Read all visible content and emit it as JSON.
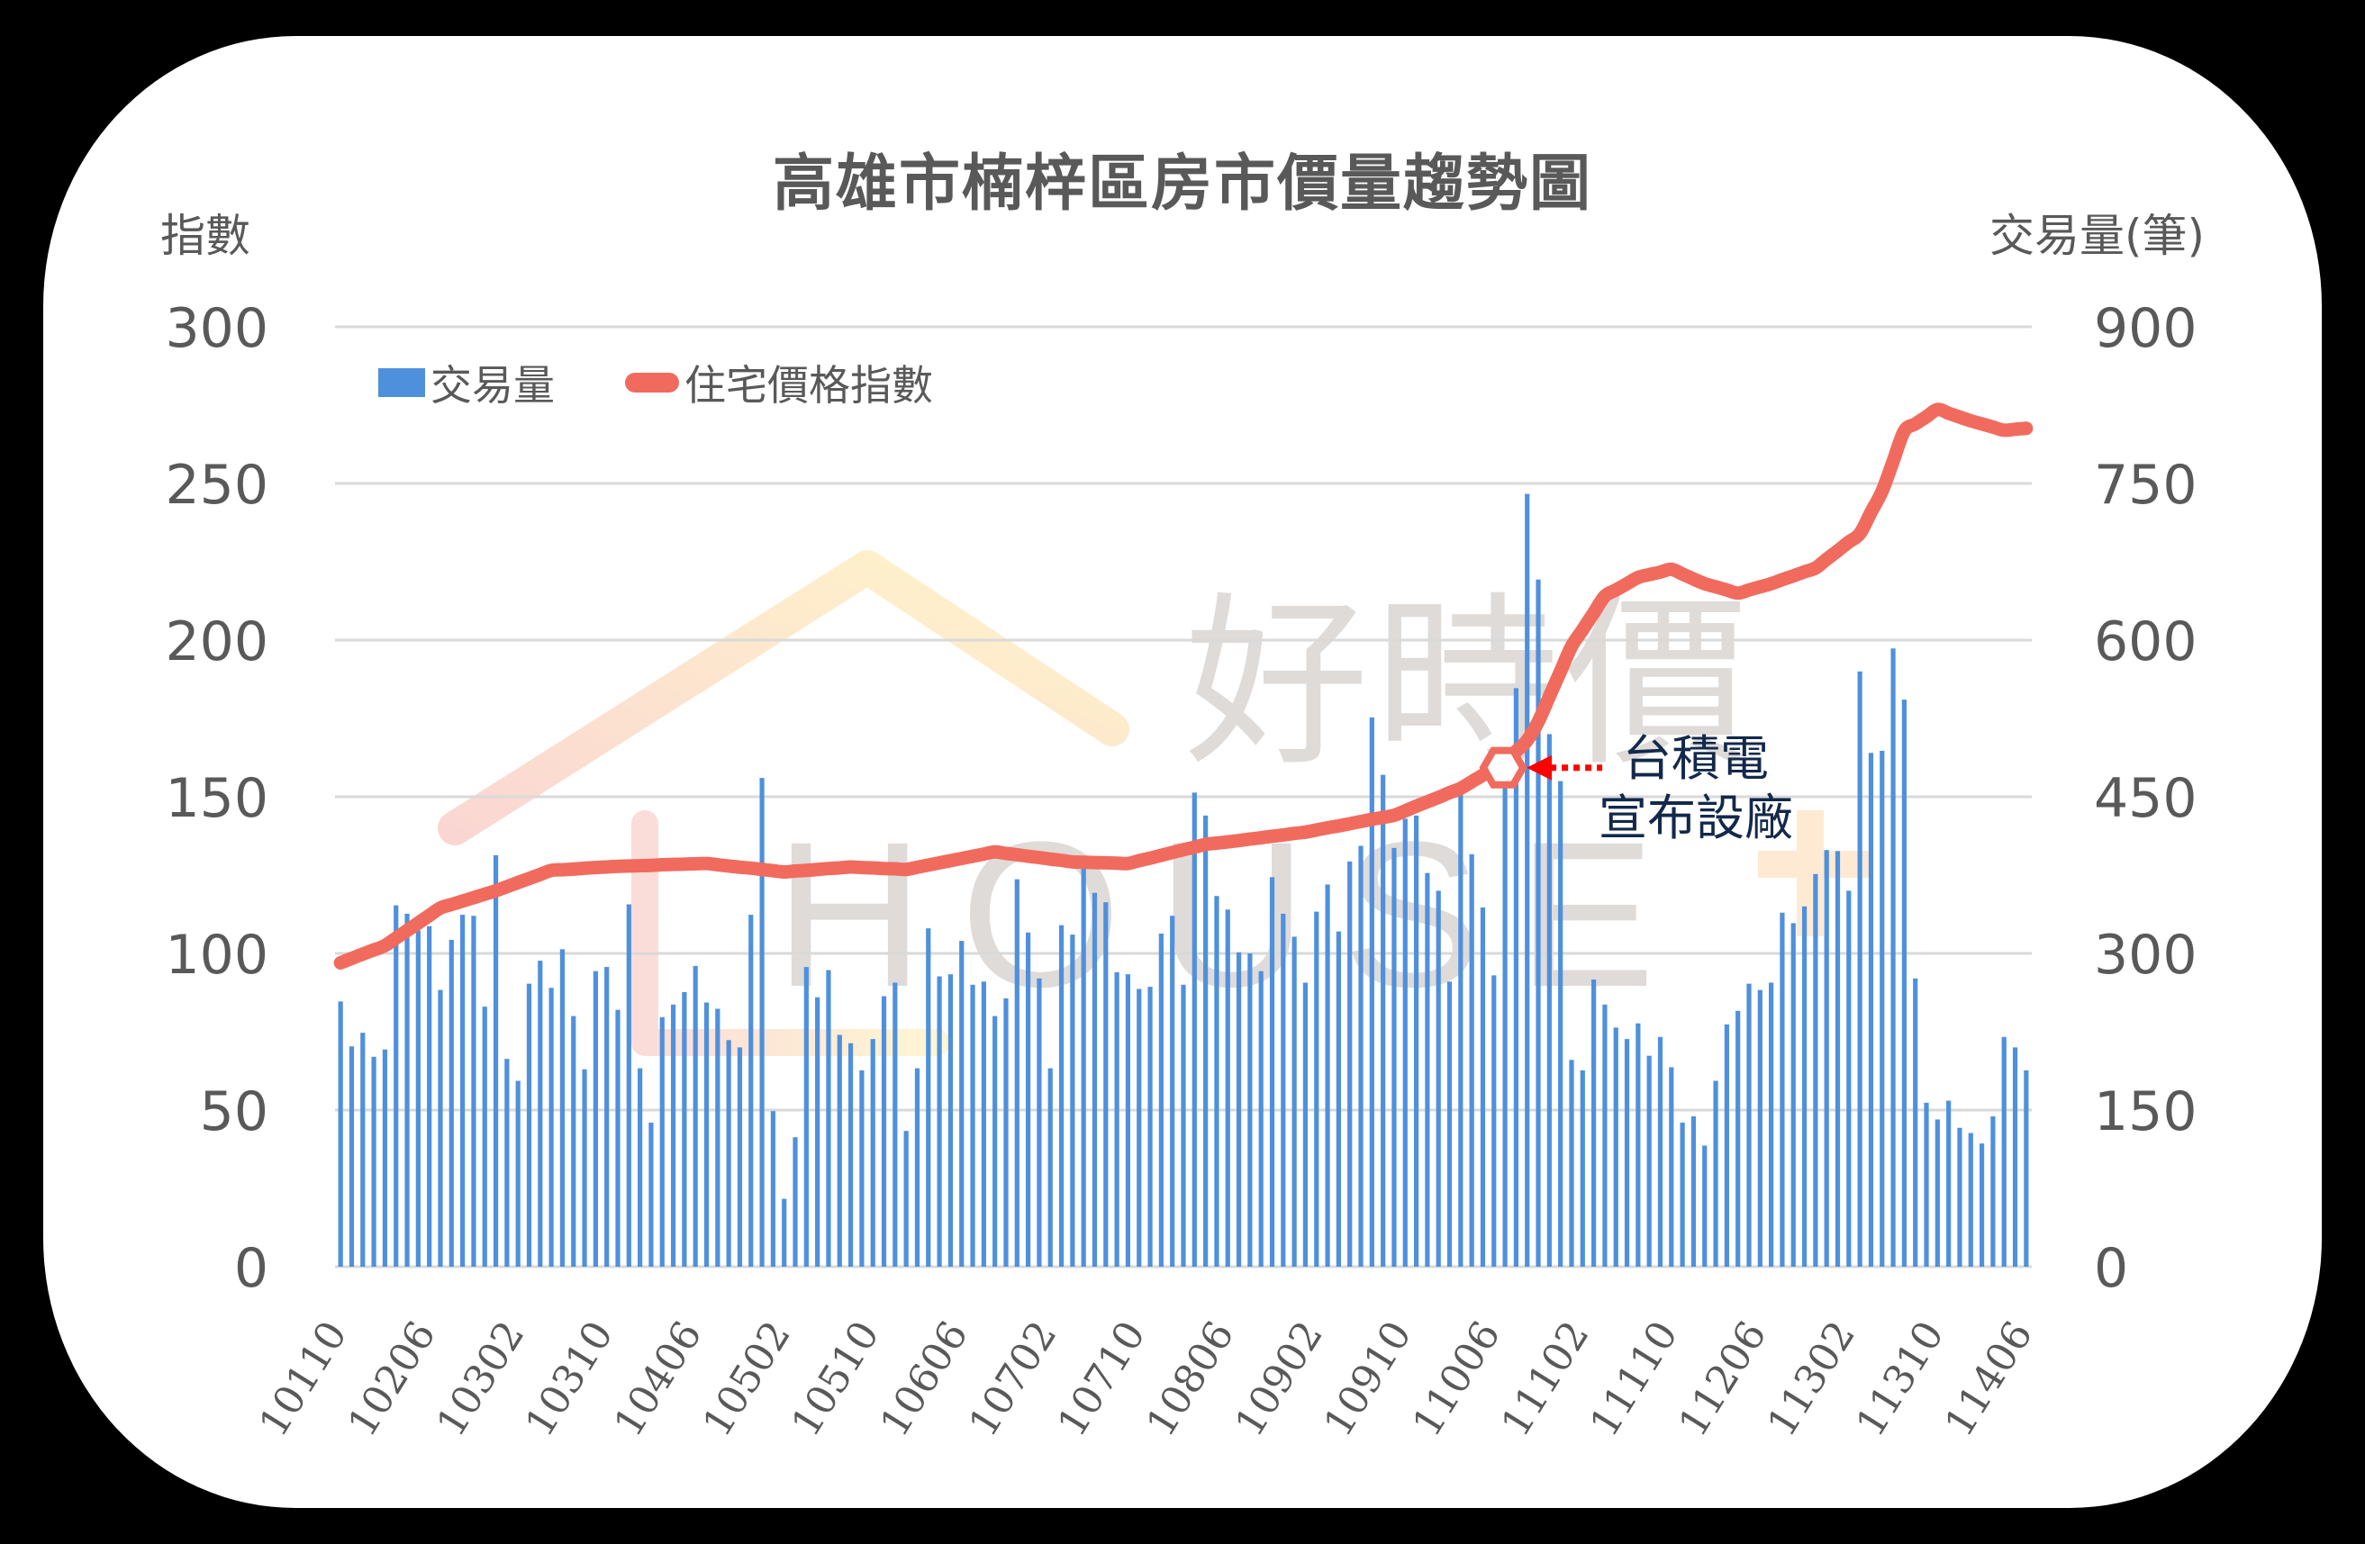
{
  "title": "高雄市楠梓區房市價量趨勢圖",
  "axis_titles": {
    "left": "指數",
    "right": "交易量(筆)"
  },
  "legend": {
    "bar_label": "交易量",
    "line_label": "住宅價格指數"
  },
  "annotation": {
    "line1": "台積電",
    "line2": "宣布設廠",
    "marker_month_index": 106
  },
  "watermark": {
    "text_cn": "好時價",
    "text_en": "HOUSE"
  },
  "colors": {
    "bar": "#4f90dc",
    "line": "#f06b5e",
    "grid": "#d9d9d9",
    "text": "#595959",
    "annotation_text": "#13294b",
    "arrow": "#ff0000",
    "background": "#000000",
    "card": "#ffffff"
  },
  "chart_data": {
    "type": "bar+line",
    "title": "高雄市楠梓區房市價量趨勢圖",
    "xlabel": "",
    "ylabel_left": "指數",
    "ylabel_right": "交易量(筆)",
    "ylim_left": [
      0,
      300
    ],
    "ylim_right": [
      0,
      900
    ],
    "yticks_left": [
      0,
      50,
      100,
      150,
      200,
      250,
      300
    ],
    "yticks_right": [
      0,
      150,
      300,
      450,
      600,
      750,
      900
    ],
    "grid": true,
    "legend_position": "top-left",
    "x_start": "10110",
    "x_end": "11406",
    "x_tick_labels": [
      "10110",
      "10206",
      "10302",
      "10310",
      "10406",
      "10502",
      "10510",
      "10606",
      "10702",
      "10710",
      "10806",
      "10902",
      "10910",
      "11006",
      "11102",
      "11110",
      "11206",
      "11302",
      "11310",
      "11406"
    ],
    "x_tick_step_months": 8,
    "series": [
      {
        "name": "交易量",
        "type": "bar",
        "axis": "right",
        "values": [
          254,
          211,
          224,
          201,
          208,
          346,
          338,
          322,
          326,
          265,
          313,
          337,
          336,
          249,
          394,
          199,
          178,
          271,
          293,
          267,
          304,
          240,
          189,
          283,
          287,
          246,
          347,
          190,
          138,
          239,
          251,
          263,
          288,
          253,
          247,
          217,
          210,
          337,
          468,
          149,
          65,
          124,
          287,
          258,
          284,
          222,
          214,
          188,
          218,
          259,
          272,
          130,
          190,
          324,
          278,
          280,
          312,
          270,
          273,
          240,
          257,
          371,
          320,
          276,
          190,
          327,
          318,
          381,
          358,
          349,
          282,
          280,
          266,
          268,
          319,
          336,
          270,
          454,
          432,
          355,
          342,
          301,
          300,
          283,
          373,
          338,
          316,
          272,
          340,
          366,
          321,
          388,
          403,
          526,
          471,
          401,
          429,
          432,
          377,
          360,
          273,
          453,
          395,
          344,
          279,
          460,
          554,
          740,
          658,
          510,
          465,
          198,
          188,
          275,
          251,
          229,
          218,
          233,
          202,
          220,
          191,
          138,
          144,
          116,
          178,
          232,
          245,
          271,
          265,
          272,
          339,
          329,
          345,
          376,
          399,
          398,
          360,
          570,
          492,
          494,
          592,
          543,
          276,
          157,
          141,
          159,
          133,
          128,
          118,
          144,
          220,
          210,
          188
        ]
      },
      {
        "name": "住宅價格指數",
        "type": "line",
        "axis": "left",
        "values": [
          97.0,
          98.4,
          99.8,
          101.1,
          102.5,
          104.9,
          107.3,
          109.7,
          112.1,
          114.5,
          115.6,
          116.7,
          117.8,
          118.9,
          120.0,
          121.3,
          122.6,
          123.9,
          125.2,
          126.5,
          126.7,
          126.9,
          127.2,
          127.4,
          127.6,
          127.8,
          127.9,
          128.0,
          128.1,
          128.3,
          128.4,
          128.5,
          128.6,
          128.7,
          128.3,
          127.9,
          127.5,
          127.2,
          126.8,
          126.4,
          126.0,
          126.3,
          126.5,
          126.8,
          127.1,
          127.3,
          127.6,
          127.4,
          127.3,
          127.1,
          127.0,
          126.8,
          127.5,
          128.2,
          128.9,
          129.6,
          130.3,
          131.0,
          131.7,
          132.4,
          131.9,
          131.5,
          131.0,
          130.6,
          130.1,
          129.7,
          129.2,
          129.1,
          129.0,
          128.9,
          128.8,
          128.7,
          129.6,
          130.4,
          131.3,
          132.2,
          133.1,
          133.9,
          134.8,
          135.2,
          135.6,
          136.0,
          136.5,
          136.9,
          137.4,
          137.8,
          138.3,
          138.7,
          139.4,
          140.1,
          140.7,
          141.4,
          142.1,
          142.8,
          143.4,
          144.1,
          145.5,
          147.0,
          148.4,
          149.8,
          151.3,
          152.7,
          154.8,
          156.9,
          158.9,
          161.0,
          164.5,
          168.0,
          174.0,
          182.0,
          190.0,
          198.0,
          203.3,
          208.7,
          214.0,
          216.0,
          218.0,
          220.0,
          220.9,
          221.7,
          222.6,
          221.1,
          219.5,
          218.0,
          217.0,
          216.0,
          215.0,
          216.0,
          217.0,
          218.0,
          219.3,
          220.5,
          221.8,
          223.0,
          225.8,
          228.5,
          231.3,
          234.0,
          240.8,
          247.5,
          257.1,
          266.7,
          269.0,
          271.3,
          273.6,
          272.4,
          271.2,
          270.0,
          269.0,
          268.0,
          267.0,
          267.3,
          267.6
        ]
      }
    ],
    "annotations": [
      {
        "text": "台積電 宣布設廠",
        "at_month_index": 106,
        "marker": "hexagon",
        "arrow": "dotted-left"
      }
    ]
  }
}
